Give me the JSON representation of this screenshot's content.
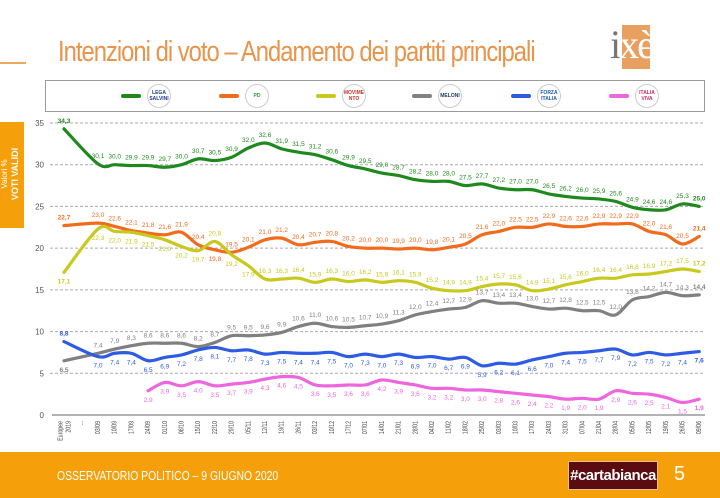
{
  "header": {
    "title": "Intenzioni di voto – Andamento dei partiti principali",
    "logo_text": "ixè"
  },
  "side_label": {
    "line1": "Valori %",
    "line2": "VOTI VALIDI"
  },
  "legend": [
    {
      "color": "#1E8A1E",
      "logo_text": "LEGA SALVINI",
      "logo_color": "#1f3a93"
    },
    {
      "color": "#F26B1D",
      "logo_text": "PD",
      "logo_color": "#2c9a3a"
    },
    {
      "color": "#C8C81E",
      "logo_text": "MOVIMENTO",
      "logo_color": "#c0392b"
    },
    {
      "color": "#808080",
      "logo_text": "MELONI",
      "logo_color": "#1a3a6e"
    },
    {
      "color": "#2D5BE3",
      "logo_text": "FORZA ITALIA",
      "logo_color": "#1f5aa6"
    },
    {
      "color": "#EE66DD",
      "logo_text": "ITALIA VIVA",
      "logo_color": "#c0306a"
    }
  ],
  "footer": {
    "text": "OSSERVATORIO POLITICO – 9 GIUGNO 2020",
    "badge": "#cartabianca",
    "page_number": "5"
  },
  "chart_data": {
    "type": "line",
    "ylim": [
      0,
      35
    ],
    "yticks": [
      "0",
      "5",
      "10",
      "15",
      "20",
      "25",
      "30",
      "35"
    ],
    "grid": "dashed horizontal",
    "legend_placement": "top",
    "categories": [
      "Europee 2019",
      "...",
      "03/09",
      "10/09",
      "17/09",
      "24/09",
      "01/10",
      "08/10",
      "15/10",
      "22/10",
      "29/10",
      "05/11",
      "12/11",
      "19/11",
      "26/11",
      "03/12",
      "10/12",
      "17/12",
      "07/01",
      "14/01",
      "21/01",
      "28/01",
      "04/02",
      "11/02",
      "18/02",
      "25/02",
      "03/03",
      "10/03",
      "17/03",
      "24/03",
      "31/03",
      "07/04",
      "21/04",
      "28/04",
      "05/05",
      "12/05",
      "19/05",
      "26/05",
      "09/06"
    ],
    "series": [
      {
        "color": "#1E8A1E",
        "label_pos": "above",
        "values": [
          34.3,
          null,
          30.1,
          30.0,
          29.9,
          29.9,
          29.7,
          30.0,
          30.7,
          30.5,
          30.9,
          32.0,
          32.6,
          31.9,
          31.5,
          31.2,
          30.6,
          29.9,
          29.5,
          29.0,
          28.7,
          28.2,
          28.0,
          28.0,
          27.5,
          27.7,
          27.2,
          27.0,
          27.0,
          26.5,
          26.2,
          26.0,
          25.9,
          25.6,
          24.9,
          24.6,
          24.6,
          25.3,
          25.0
        ]
      },
      {
        "color": "#F26B1D",
        "label_pos": "above",
        "values": [
          22.7,
          null,
          23.0,
          22.6,
          22.1,
          21.8,
          21.6,
          21.9,
          20.4,
          19.8,
          19.5,
          20.1,
          21.0,
          21.2,
          20.4,
          20.7,
          20.8,
          20.2,
          20.0,
          20.0,
          19.9,
          20.0,
          19.8,
          20.1,
          20.5,
          21.6,
          22.0,
          22.5,
          22.5,
          22.9,
          22.6,
          22.6,
          22.9,
          22.9,
          22.9,
          22.0,
          21.6,
          20.5,
          21.4
        ]
      },
      {
        "color": "#C8C81E",
        "label_pos": "below",
        "values": [
          17.1,
          null,
          22.3,
          22.0,
          21.9,
          21.5,
          21.0,
          20.2,
          19.7,
          20.8,
          19.2,
          17.9,
          16.3,
          16.3,
          16.4,
          15.9,
          16.3,
          16.0,
          16.2,
          15.9,
          16.1,
          15.9,
          15.2,
          14.9,
          14.9,
          15.4,
          15.7,
          15.6,
          14.9,
          15.1,
          15.6,
          16.0,
          16.4,
          16.4,
          16.8,
          16.9,
          17.2,
          17.5,
          17.2
        ]
      },
      {
        "color": "#808080",
        "label_pos": "above",
        "values": [
          6.5,
          null,
          7.4,
          7.9,
          8.3,
          8.6,
          8.6,
          8.6,
          8.2,
          8.7,
          9.5,
          9.5,
          9.6,
          9.9,
          10.6,
          11.0,
          10.6,
          10.5,
          10.7,
          10.9,
          11.3,
          12.0,
          12.4,
          12.7,
          12.9,
          13.7,
          13.4,
          13.4,
          13.0,
          12.7,
          12.8,
          12.5,
          12.5,
          12.0,
          13.8,
          14.2,
          14.7,
          14.3,
          14.4
        ]
      },
      {
        "color": "#2D5BE3",
        "label_pos": "below",
        "values": [
          8.8,
          null,
          7.0,
          7.4,
          7.4,
          6.5,
          6.9,
          7.2,
          7.8,
          8.1,
          7.7,
          7.8,
          7.3,
          7.5,
          7.4,
          7.4,
          7.5,
          7.0,
          7.3,
          7.0,
          7.3,
          6.9,
          7.0,
          6.7,
          6.9,
          5.9,
          6.2,
          6.1,
          6.6,
          7.0,
          7.4,
          7.5,
          7.7,
          7.9,
          7.2,
          7.5,
          7.2,
          7.4,
          7.6
        ]
      },
      {
        "color": "#EE66DD",
        "label_pos": "below",
        "values": [
          null,
          null,
          null,
          null,
          null,
          2.9,
          3.9,
          3.5,
          4.0,
          3.5,
          3.7,
          3.9,
          4.3,
          4.6,
          4.5,
          3.6,
          3.5,
          3.6,
          3.6,
          4.2,
          3.9,
          3.6,
          3.2,
          3.2,
          3.0,
          3.0,
          2.8,
          2.6,
          2.4,
          2.2,
          1.9,
          2.0,
          1.9,
          2.9,
          2.6,
          2.5,
          2.1,
          1.5,
          1.9
        ]
      }
    ]
  }
}
